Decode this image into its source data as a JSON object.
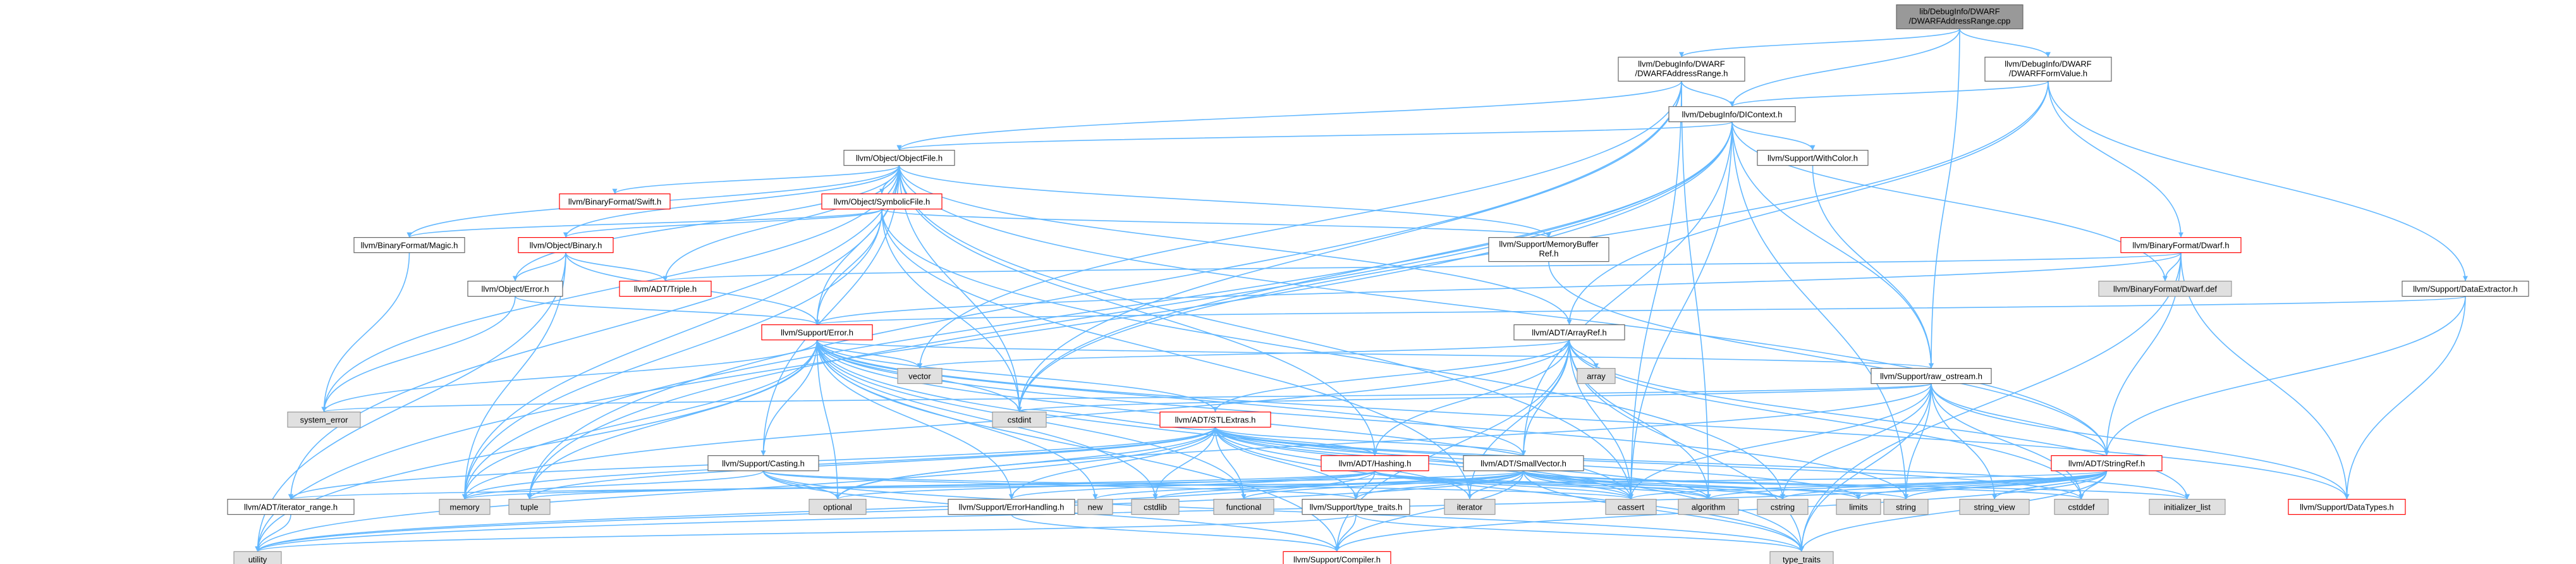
{
  "colors": {
    "edge": "#63b8ff",
    "root_fill": "#999999",
    "gray_fill": "#e0e0e0",
    "red_border": "#ff0000",
    "border": "#666666"
  },
  "nodes": {
    "root": [
      "lib/DebugInfo/DWARF",
      "/DWARFAddressRange.cpp"
    ],
    "addr_range_h": [
      "llvm/DebugInfo/DWARF",
      "/DWARFAddressRange.h"
    ],
    "form_value_h": [
      "llvm/DebugInfo/DWARF",
      "/DWARFFormValue.h"
    ],
    "dicontext_h": [
      "llvm/DebugInfo/DIContext.h"
    ],
    "objectfile_h": [
      "llvm/Object/ObjectFile.h"
    ],
    "withcolor_h": [
      "llvm/Support/WithColor.h"
    ],
    "swift_h": [
      "llvm/BinaryFormat/Swift.h"
    ],
    "symbolicfile_h": [
      "llvm/Object/SymbolicFile.h"
    ],
    "magic_h": [
      "llvm/BinaryFormat/Magic.h"
    ],
    "binary_h": [
      "llvm/Object/Binary.h"
    ],
    "memorybuffer_h": [
      "llvm/Support/MemoryBuffer",
      "Ref.h"
    ],
    "dwarf_h": [
      "llvm/BinaryFormat/Dwarf.h"
    ],
    "dwarf_def": [
      "llvm/BinaryFormat/Dwarf.def"
    ],
    "dataextractor_h": [
      "llvm/Support/DataExtractor.h"
    ],
    "object_error_h": [
      "llvm/Object/Error.h"
    ],
    "triple_h": [
      "llvm/ADT/Triple.h"
    ],
    "support_error_h": [
      "llvm/Support/Error.h"
    ],
    "arrayref_h": [
      "llvm/ADT/ArrayRef.h"
    ],
    "array": [
      "array"
    ],
    "vector": [
      "vector"
    ],
    "raw_ostream_h": [
      "llvm/Support/raw_ostream.h"
    ],
    "stlextras_h": [
      "llvm/ADT/STLExtras.h"
    ],
    "system_error": [
      "system_error"
    ],
    "cstdint": [
      "cstdint"
    ],
    "casting_h": [
      "llvm/Support/Casting.h"
    ],
    "hashing_h": [
      "llvm/ADT/Hashing.h"
    ],
    "smallvector_h": [
      "llvm/ADT/SmallVector.h"
    ],
    "stringref_h": [
      "llvm/ADT/StringRef.h"
    ],
    "iterator_range_h": [
      "llvm/ADT/iterator_range.h"
    ],
    "memory": [
      "memory"
    ],
    "tuple": [
      "tuple"
    ],
    "optional": [
      "optional"
    ],
    "new": [
      "new"
    ],
    "cstdlib": [
      "cstdlib"
    ],
    "functional": [
      "functional"
    ],
    "errorhandling_h": [
      "llvm/Support/ErrorHandling.h"
    ],
    "type_traits_h": [
      "llvm/Support/type_traits.h"
    ],
    "iterator": [
      "iterator"
    ],
    "cassert": [
      "cassert"
    ],
    "algorithm": [
      "algorithm"
    ],
    "cstring": [
      "cstring"
    ],
    "limits": [
      "limits"
    ],
    "string": [
      "string"
    ],
    "string_view": [
      "string_view"
    ],
    "cstddef": [
      "cstddef"
    ],
    "initializer_list": [
      "initializer_list"
    ],
    "datatypes_h": [
      "llvm/Support/DataTypes.h"
    ],
    "utility": [
      "utility"
    ],
    "compiler_h": [
      "llvm/Support/Compiler.h"
    ],
    "type_traits": [
      "type_traits"
    ]
  }
}
